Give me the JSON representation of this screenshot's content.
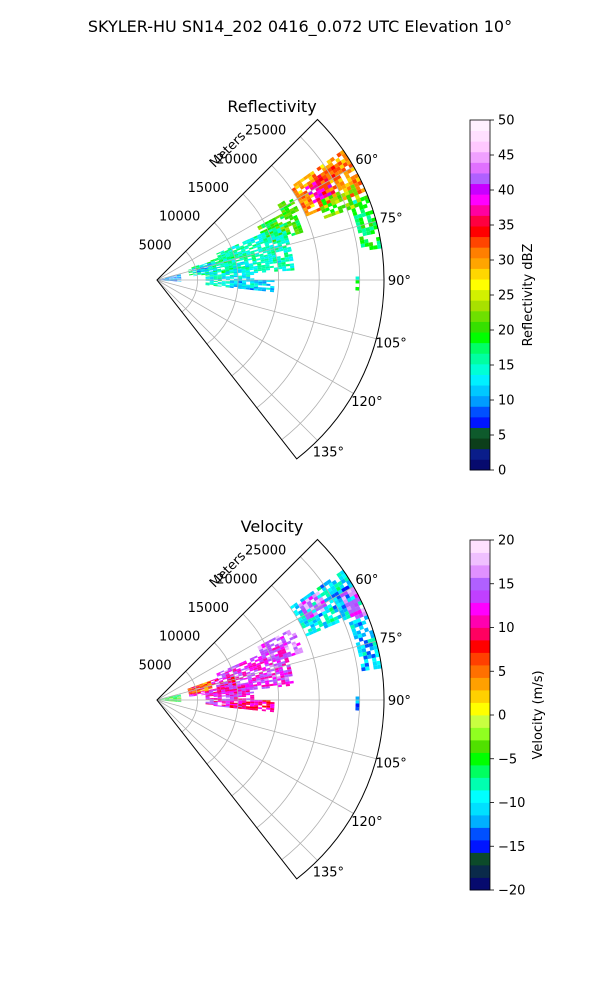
{
  "figure": {
    "title": "SKYLER-HU  SN14_202  0416_0.072 UTC Elevation 10°"
  },
  "panels": [
    {
      "id": "reflectivity",
      "title": "Reflectivity",
      "colorbar_label": "Reflectivity dBZ",
      "range_unit_label": "Meters",
      "radial_ticks": [
        "5000",
        "10000",
        "15000",
        "20000",
        "25000"
      ],
      "azimuth_ticks": [
        "60°",
        "75°",
        "90°",
        "105°",
        "120°",
        "135°"
      ],
      "colorbar_ticks": [
        "0",
        "5",
        "10",
        "15",
        "20",
        "25",
        "30",
        "35",
        "40",
        "45",
        "50"
      ]
    },
    {
      "id": "velocity",
      "title": "Velocity",
      "colorbar_label": "Velocity (m/s)",
      "range_unit_label": "Meters",
      "radial_ticks": [
        "5000",
        "10000",
        "15000",
        "20000",
        "25000"
      ],
      "azimuth_ticks": [
        "60°",
        "75°",
        "90°",
        "105°",
        "120°",
        "135°"
      ],
      "colorbar_ticks": [
        "−20",
        "−15",
        "−10",
        "−5",
        "0",
        "5",
        "10",
        "15",
        "20"
      ]
    }
  ],
  "chart_data": [
    {
      "type": "heatmap",
      "projection": "polar-sector",
      "title": "Reflectivity",
      "azimuth_range_deg": [
        45,
        142
      ],
      "range_max_m": 28000,
      "radial_grid_m": [
        5000,
        10000,
        15000,
        20000,
        25000
      ],
      "azimuth_grid_deg": [
        60,
        75,
        90,
        105,
        120,
        135
      ],
      "colorbar": {
        "label": "Reflectivity dBZ",
        "min": 0,
        "max": 50,
        "step": 5,
        "colormap": "NWS reflectivity"
      },
      "regions": [
        {
          "az": [
            55,
            67
          ],
          "r": [
            20000,
            28000
          ],
          "value": 30
        },
        {
          "az": [
            58,
            64
          ],
          "r": [
            21500,
            24500
          ],
          "value": 38
        },
        {
          "az": [
            57,
            63
          ],
          "r": [
            23000,
            26000
          ],
          "value": 33
        },
        {
          "az": [
            68,
            82
          ],
          "r": [
            25500,
            28000
          ],
          "value": 18
        },
        {
          "az": [
            64,
            70
          ],
          "r": [
            22000,
            27000
          ],
          "value": 22
        },
        {
          "az": [
            62,
            72
          ],
          "r": [
            14000,
            19000
          ],
          "value": 20
        },
        {
          "az": [
            58,
            64
          ],
          "r": [
            17500,
            19500
          ],
          "value": 20
        },
        {
          "az": [
            66,
            86
          ],
          "r": [
            8000,
            17000
          ],
          "value": 15
        },
        {
          "az": [
            70,
            84
          ],
          "r": [
            4000,
            10000
          ],
          "value": 16
        },
        {
          "az": [
            72,
            80
          ],
          "r": [
            4500,
            7500
          ],
          "value": 11
        },
        {
          "az": [
            78,
            96
          ],
          "r": [
            6000,
            12000
          ],
          "value": 14
        },
        {
          "az": [
            90,
            96
          ],
          "r": [
            9000,
            14500
          ],
          "value": 12
        },
        {
          "az": [
            75,
            95
          ],
          "r": [
            0,
            3000
          ],
          "value": 10
        },
        {
          "az": [
            89,
            93
          ],
          "r": [
            24500,
            25000
          ],
          "value": 17
        }
      ]
    },
    {
      "type": "heatmap",
      "projection": "polar-sector",
      "title": "Velocity",
      "azimuth_range_deg": [
        45,
        142
      ],
      "range_max_m": 28000,
      "radial_grid_m": [
        5000,
        10000,
        15000,
        20000,
        25000
      ],
      "azimuth_grid_deg": [
        60,
        75,
        90,
        105,
        120,
        135
      ],
      "colorbar": {
        "label": "Velocity (m/s)",
        "min": -20,
        "max": 20,
        "step": 5,
        "colormap": "NWS velocity"
      },
      "regions": [
        {
          "az": [
            55,
            67
          ],
          "r": [
            20000,
            28000
          ],
          "value": -10
        },
        {
          "az": [
            58,
            64
          ],
          "r": [
            24500,
            28000
          ],
          "value": -12
        },
        {
          "az": [
            56,
            62
          ],
          "r": [
            21000,
            24000
          ],
          "value": 15
        },
        {
          "az": [
            60,
            70
          ],
          "r": [
            26000,
            28000
          ],
          "value": 15
        },
        {
          "az": [
            68,
            82
          ],
          "r": [
            25500,
            28000
          ],
          "value": -11
        },
        {
          "az": [
            62,
            72
          ],
          "r": [
            14000,
            19000
          ],
          "value": 15
        },
        {
          "az": [
            66,
            84
          ],
          "r": [
            8000,
            17000
          ],
          "value": 13
        },
        {
          "az": [
            70,
            84
          ],
          "r": [
            4000,
            10000
          ],
          "value": 11
        },
        {
          "az": [
            70,
            80
          ],
          "r": [
            4000,
            7000
          ],
          "value": 5
        },
        {
          "az": [
            80,
            96
          ],
          "r": [
            6000,
            12000
          ],
          "value": 12
        },
        {
          "az": [
            90,
            96
          ],
          "r": [
            9000,
            14500
          ],
          "value": 10
        },
        {
          "az": [
            75,
            95
          ],
          "r": [
            0,
            3000
          ],
          "value": -5
        },
        {
          "az": [
            89,
            93
          ],
          "r": [
            24500,
            25000
          ],
          "value": -12
        }
      ]
    }
  ]
}
